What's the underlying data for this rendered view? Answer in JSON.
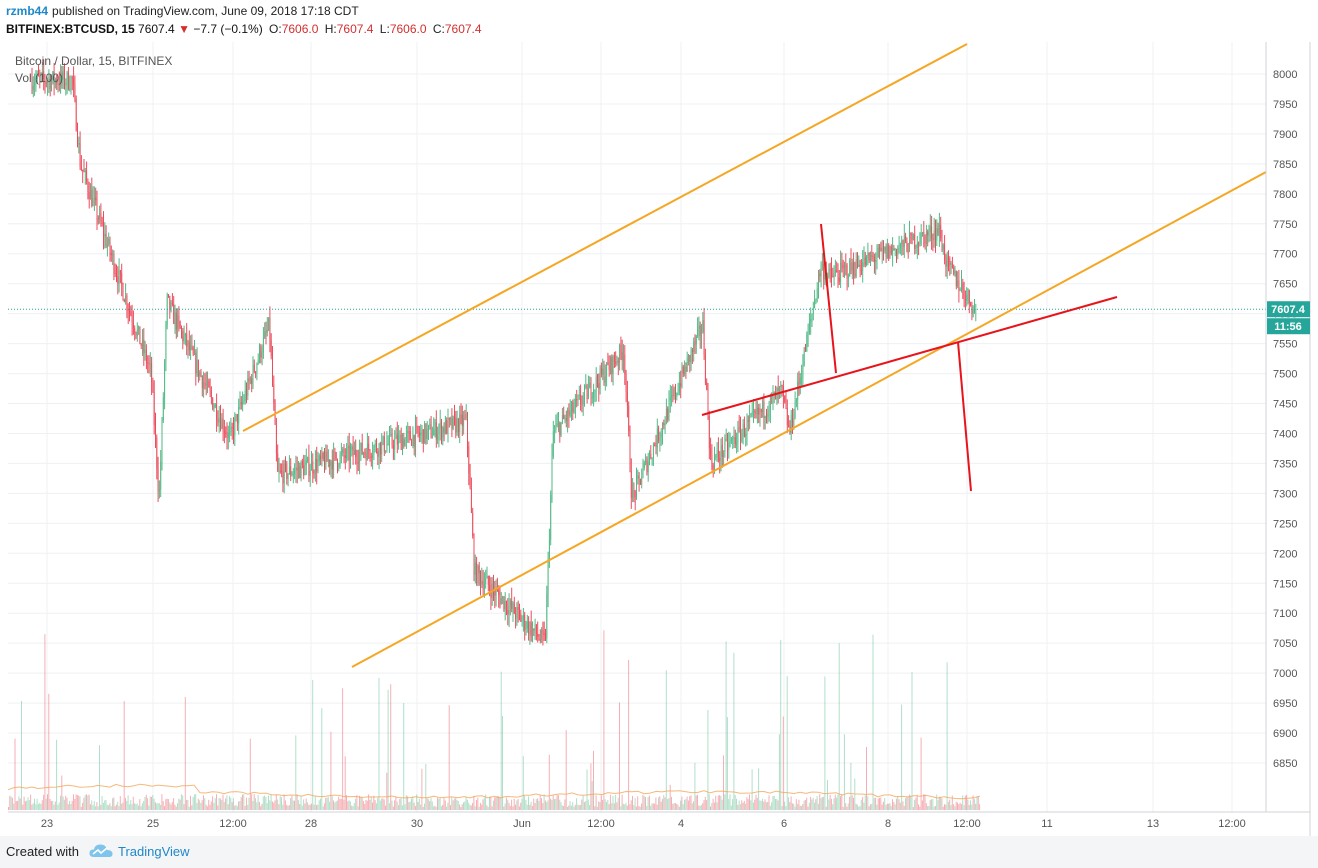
{
  "header": {
    "username": "rzmb44",
    "published": "published on TradingView.com, June 09, 2018 17:18 CDT",
    "symbol": "BITFINEX:BTCUSD, 15",
    "last": "7607.4",
    "change": "−7.7 (−0.1%)",
    "o_label": "O:",
    "o": "7606.0",
    "h_label": "H:",
    "h": "7607.4",
    "l_label": "L:",
    "l": "7606.0",
    "c_label": "C:",
    "c": "7607.4"
  },
  "legend": {
    "title": "Bitcoin / Dollar, 15, BITFINEX",
    "volume": "Vol (100)"
  },
  "price_tag": {
    "price": "7607.4",
    "countdown": "11:56"
  },
  "footer": {
    "created_with": "Created with",
    "brand": "TradingView"
  },
  "colors": {
    "up": "#53b987",
    "down": "#eb4d5c",
    "channel": "#f5a623",
    "red_lines": "#e8141c",
    "price_line": "#26a69a",
    "grid": "#eef0f3",
    "tag": "#26a69a",
    "brand": "#1e88c8"
  },
  "chart_data": {
    "type": "candlestick",
    "title": "Bitcoin / Dollar, 15, BITFINEX",
    "y_ticks": [
      8000,
      7950,
      7900,
      7850,
      7800,
      7750,
      7700,
      7650,
      7600,
      7550,
      7500,
      7450,
      7400,
      7350,
      7300,
      7250,
      7200,
      7150,
      7100,
      7050,
      7000,
      6950,
      6900,
      6850
    ],
    "x_ticks": [
      "23",
      "25",
      "12:00",
      "28",
      "30",
      "Jun",
      "12:00",
      "4",
      "6",
      "8",
      "12:00",
      "11",
      "13",
      "12:00"
    ],
    "ylim": [
      6815,
      8060
    ],
    "last_price": 7607.4,
    "price_path": [
      {
        "x": "23",
        "y": 7990
      },
      {
        "x": "23",
        "y": 7850
      },
      {
        "x": "24",
        "y": 7500
      },
      {
        "x": "24",
        "y": 7290
      },
      {
        "x": "24",
        "y": 7620
      },
      {
        "x": "25",
        "y": 7390
      },
      {
        "x": "25",
        "y": 7430
      },
      {
        "x": "12:00",
        "y": 7580
      },
      {
        "x": "12:00",
        "y": 7330
      },
      {
        "x": "28",
        "y": 7420
      },
      {
        "x": "28",
        "y": 7170
      },
      {
        "x": "29",
        "y": 7050
      },
      {
        "x": "29",
        "y": 7400
      },
      {
        "x": "30",
        "y": 7540
      },
      {
        "x": "30",
        "y": 7290
      },
      {
        "x": "31",
        "y": 7580
      },
      {
        "x": "31",
        "y": 7350
      },
      {
        "x": "Jun",
        "y": 7470
      },
      {
        "x": "Jun",
        "y": 7400
      },
      {
        "x": "12:00",
        "y": 7680
      },
      {
        "x": "12:00",
        "y": 7660
      },
      {
        "x": "3",
        "y": 7740
      },
      {
        "x": "3",
        "y": 7680
      },
      {
        "x": "4",
        "y": 7500
      },
      {
        "x": "5",
        "y": 7400
      },
      {
        "x": "5",
        "y": 7460
      },
      {
        "x": "6",
        "y": 7640
      },
      {
        "x": "6",
        "y": 7520
      },
      {
        "x": "7",
        "y": 7730
      },
      {
        "x": "7",
        "y": 7680
      },
      {
        "x": "8",
        "y": 7560
      },
      {
        "x": "8",
        "y": 7650
      },
      {
        "x": "12:00",
        "y": 7580
      },
      {
        "x": "12:00",
        "y": 7607.4
      }
    ],
    "volume_series": "Vol (100)",
    "annotations": [
      {
        "type": "channel-upper",
        "from": {
          "x": "26",
          "y": 7420
        },
        "to": {
          "x": "9",
          "y": 8045
        }
      },
      {
        "type": "channel-lower",
        "from": {
          "x": "29",
          "y": 7035
        },
        "to": {
          "x": "13",
          "y": 7840
        }
      },
      {
        "type": "trendline",
        "from": {
          "x": "4",
          "y": 7445
        },
        "to": {
          "x": "10",
          "y": 7640
        }
      },
      {
        "type": "red-segment",
        "from": {
          "x": "6",
          "y": 7755
        },
        "to": {
          "x": "7",
          "y": 7510
        }
      },
      {
        "type": "red-segment",
        "from": {
          "x": "9",
          "y": 7560
        },
        "to": {
          "x": "9",
          "y": 7320
        }
      }
    ]
  }
}
